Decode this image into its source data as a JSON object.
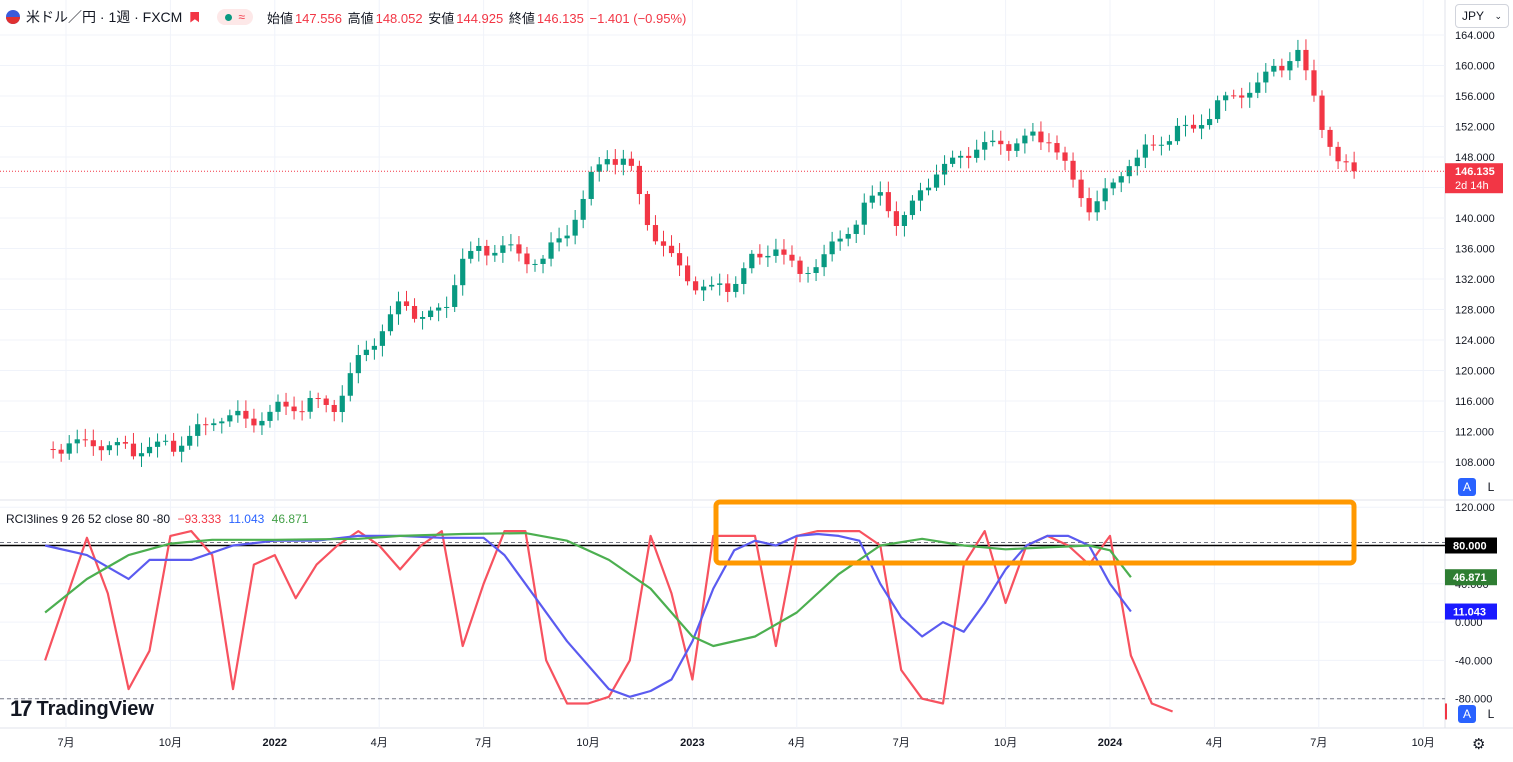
{
  "header": {
    "symbol": "米ドル／円 · 1週 · FXCM",
    "open_label": "始値",
    "open": "147.556",
    "high_label": "高値",
    "high": "148.052",
    "low_label": "安値",
    "low": "144.925",
    "close_label": "終値",
    "close": "146.135",
    "change": "−1.401 (−0.95%)"
  },
  "currency": {
    "value": "JPY"
  },
  "indicator": {
    "name": "RCI3lines 9 26 52 close 80 -80",
    "red": "−93.333",
    "blue": "11.043",
    "green": "46.871"
  },
  "price_axis": {
    "ticks": [
      "164.000",
      "160.000",
      "156.000",
      "152.000",
      "148.000",
      "144.000",
      "140.000",
      "136.000",
      "132.000",
      "128.000",
      "124.000",
      "120.000",
      "116.000",
      "112.000",
      "108.000"
    ],
    "last_price": "146.135",
    "countdown": "2d 14h"
  },
  "rci_axis": {
    "ticks": [
      "120.000",
      "80.000",
      "40.000",
      "0.000",
      "-40.000",
      "-80.000"
    ],
    "badge_80": "80.000",
    "badge_green": "46.871",
    "badge_blue": "11.043"
  },
  "time_axis": [
    "7月",
    "10月",
    "2022",
    "4月",
    "7月",
    "10月",
    "2023",
    "4月",
    "7月",
    "10月",
    "2024",
    "4月",
    "7月",
    "10月"
  ],
  "logo": {
    "text": "TradingView"
  },
  "buttons": {
    "auto": "A",
    "log": "L"
  },
  "colors": {
    "up": "#089981",
    "down": "#f23645",
    "rci_short": "#f7525f",
    "rci_mid": "#5b5bf0",
    "rci_long": "#4caf50",
    "highlight": "#ff9800"
  },
  "chart_data": [
    {
      "type": "candlestick",
      "title": "米ドル／円 · 1週 · FXCM",
      "ylim": [
        104,
        166
      ],
      "x_tick_labels": [
        "7月",
        "10月",
        "2022",
        "4月",
        "7月",
        "10月",
        "2023",
        "4月",
        "7月",
        "10月",
        "2024",
        "4月",
        "7月",
        "10月"
      ],
      "close_path": [
        [
          2021.45,
          109.7
        ],
        [
          2021.55,
          110.2
        ],
        [
          2021.65,
          109.6
        ],
        [
          2021.75,
          110.0
        ],
        [
          2021.8,
          111.5
        ],
        [
          2021.85,
          113.9
        ],
        [
          2021.9,
          114.3
        ],
        [
          2021.95,
          113.6
        ],
        [
          2022.0,
          115.2
        ],
        [
          2022.05,
          115.4
        ],
        [
          2022.1,
          115.6
        ],
        [
          2022.15,
          115.1
        ],
        [
          2022.2,
          121.2
        ],
        [
          2022.25,
          124.5
        ],
        [
          2022.3,
          128.5
        ],
        [
          2022.35,
          127.1
        ],
        [
          2022.4,
          127.4
        ],
        [
          2022.45,
          134.9
        ],
        [
          2022.5,
          135.6
        ],
        [
          2022.55,
          136.9
        ],
        [
          2022.6,
          134.5
        ],
        [
          2022.65,
          135.3
        ],
        [
          2022.7,
          138.2
        ],
        [
          2022.75,
          144.6
        ],
        [
          2022.8,
          148.4
        ],
        [
          2022.85,
          146.6
        ],
        [
          2022.9,
          138.0
        ],
        [
          2022.95,
          134.5
        ],
        [
          2023.0,
          131.0
        ],
        [
          2023.05,
          130.3
        ],
        [
          2023.1,
          131.6
        ],
        [
          2023.15,
          135.0
        ],
        [
          2023.2,
          136.5
        ],
        [
          2023.25,
          132.8
        ],
        [
          2023.3,
          134.4
        ],
        [
          2023.35,
          137.3
        ],
        [
          2023.4,
          140.4
        ],
        [
          2023.45,
          143.5
        ],
        [
          2023.5,
          138.7
        ],
        [
          2023.55,
          144.0
        ],
        [
          2023.6,
          146.1
        ],
        [
          2023.65,
          148.3
        ],
        [
          2023.7,
          149.2
        ],
        [
          2023.75,
          149.4
        ],
        [
          2023.8,
          150.2
        ],
        [
          2023.85,
          151.0
        ],
        [
          2023.9,
          146.2
        ],
        [
          2023.95,
          141.6
        ],
        [
          2024.0,
          144.0
        ],
        [
          2024.05,
          148.0
        ],
        [
          2024.1,
          149.2
        ],
        [
          2024.15,
          151.3
        ],
        [
          2024.2,
          151.4
        ],
        [
          2024.25,
          154.6
        ],
        [
          2024.3,
          155.7
        ],
        [
          2024.35,
          157.0
        ],
        [
          2024.4,
          159.8
        ],
        [
          2024.45,
          161.6
        ],
        [
          2024.5,
          153.5
        ],
        [
          2024.55,
          146.6
        ],
        [
          2024.6,
          146.1
        ]
      ],
      "last_close": 146.135
    },
    {
      "type": "line",
      "title": "RCI3lines 9 26 52 close 80 -80",
      "ylim": [
        -95,
        125
      ],
      "levels": [
        80,
        -80
      ],
      "series": [
        {
          "name": "",
          "last": -93.333,
          "points": [
            [
              2021.45,
              -40
            ],
            [
              2021.55,
              88
            ],
            [
              2021.6,
              30
            ],
            [
              2021.65,
              -70
            ],
            [
              2021.7,
              -30
            ],
            [
              2021.75,
              90
            ],
            [
              2021.8,
              95
            ],
            [
              2021.85,
              70
            ],
            [
              2021.9,
              -70
            ],
            [
              2021.95,
              60
            ],
            [
              2022.0,
              70
            ],
            [
              2022.05,
              25
            ],
            [
              2022.1,
              60
            ],
            [
              2022.15,
              80
            ],
            [
              2022.2,
              95
            ],
            [
              2022.25,
              80
            ],
            [
              2022.3,
              55
            ],
            [
              2022.35,
              80
            ],
            [
              2022.4,
              95
            ],
            [
              2022.45,
              -25
            ],
            [
              2022.5,
              40
            ],
            [
              2022.55,
              95
            ],
            [
              2022.6,
              95
            ],
            [
              2022.65,
              -40
            ],
            [
              2022.7,
              -85
            ],
            [
              2022.75,
              -85
            ],
            [
              2022.8,
              -78
            ],
            [
              2022.85,
              -40
            ],
            [
              2022.9,
              90
            ],
            [
              2022.95,
              30
            ],
            [
              2023.0,
              -60
            ],
            [
              2023.05,
              90
            ],
            [
              2023.1,
              90
            ],
            [
              2023.15,
              90
            ],
            [
              2023.2,
              -25
            ],
            [
              2023.25,
              90
            ],
            [
              2023.3,
              95
            ],
            [
              2023.35,
              95
            ],
            [
              2023.4,
              95
            ],
            [
              2023.45,
              80
            ],
            [
              2023.5,
              -50
            ],
            [
              2023.55,
              -80
            ],
            [
              2023.6,
              -85
            ],
            [
              2023.65,
              60
            ],
            [
              2023.7,
              95
            ],
            [
              2023.75,
              20
            ],
            [
              2023.8,
              80
            ],
            [
              2023.85,
              90
            ],
            [
              2023.9,
              80
            ],
            [
              2023.95,
              60
            ],
            [
              2024.0,
              90
            ],
            [
              2024.05,
              -35
            ],
            [
              2024.1,
              -85
            ],
            [
              2024.15,
              -93.333
            ]
          ]
        },
        {
          "name": "",
          "last": 11.043,
          "points": [
            [
              2021.45,
              80
            ],
            [
              2021.55,
              70
            ],
            [
              2021.65,
              45
            ],
            [
              2021.7,
              65
            ],
            [
              2021.8,
              65
            ],
            [
              2021.9,
              80
            ],
            [
              2022.0,
              85
            ],
            [
              2022.1,
              85
            ],
            [
              2022.2,
              90
            ],
            [
              2022.3,
              90
            ],
            [
              2022.4,
              88
            ],
            [
              2022.5,
              88
            ],
            [
              2022.55,
              70
            ],
            [
              2022.6,
              40
            ],
            [
              2022.7,
              -20
            ],
            [
              2022.8,
              -70
            ],
            [
              2022.85,
              -78
            ],
            [
              2022.9,
              -72
            ],
            [
              2022.95,
              -60
            ],
            [
              2023.0,
              -20
            ],
            [
              2023.05,
              35
            ],
            [
              2023.1,
              75
            ],
            [
              2023.15,
              85
            ],
            [
              2023.2,
              80
            ],
            [
              2023.25,
              90
            ],
            [
              2023.3,
              92
            ],
            [
              2023.35,
              90
            ],
            [
              2023.4,
              85
            ],
            [
              2023.45,
              40
            ],
            [
              2023.5,
              5
            ],
            [
              2023.55,
              -15
            ],
            [
              2023.6,
              0
            ],
            [
              2023.65,
              -10
            ],
            [
              2023.7,
              20
            ],
            [
              2023.75,
              55
            ],
            [
              2023.8,
              80
            ],
            [
              2023.85,
              90
            ],
            [
              2023.9,
              90
            ],
            [
              2023.95,
              80
            ],
            [
              2024.0,
              40
            ],
            [
              2024.05,
              11.043
            ]
          ]
        },
        {
          "name": "",
          "last": 46.871,
          "points": [
            [
              2021.45,
              10
            ],
            [
              2021.55,
              45
            ],
            [
              2021.65,
              70
            ],
            [
              2021.75,
              82
            ],
            [
              2021.85,
              86
            ],
            [
              2022.0,
              86
            ],
            [
              2022.2,
              87
            ],
            [
              2022.3,
              90
            ],
            [
              2022.45,
              92
            ],
            [
              2022.6,
              93
            ],
            [
              2022.7,
              85
            ],
            [
              2022.8,
              65
            ],
            [
              2022.9,
              35
            ],
            [
              2023.0,
              -15
            ],
            [
              2023.05,
              -25
            ],
            [
              2023.15,
              -15
            ],
            [
              2023.25,
              10
            ],
            [
              2023.35,
              50
            ],
            [
              2023.45,
              80
            ],
            [
              2023.55,
              87
            ],
            [
              2023.65,
              80
            ],
            [
              2023.75,
              76
            ],
            [
              2023.85,
              78
            ],
            [
              2023.95,
              80
            ],
            [
              2024.0,
              75
            ],
            [
              2024.05,
              46.871
            ]
          ]
        }
      ]
    }
  ]
}
